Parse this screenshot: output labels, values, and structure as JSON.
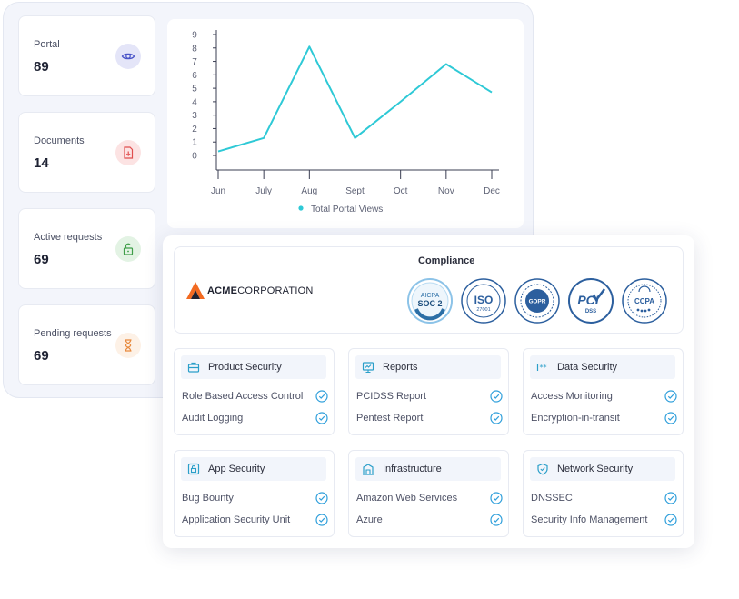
{
  "stats": [
    {
      "label": "Portal",
      "value": "89",
      "icon": "eye-icon",
      "bg": "#e4e5f8",
      "color": "#4a54c8"
    },
    {
      "label": "Documents",
      "value": "14",
      "icon": "document-download-icon",
      "bg": "#fce3e3",
      "color": "#e04e4e"
    },
    {
      "label": "Active requests",
      "value": "69",
      "icon": "unlock-icon",
      "bg": "#e3f3e4",
      "color": "#3f9e49"
    },
    {
      "label": "Pending requests",
      "value": "69",
      "icon": "hourglass-icon",
      "bg": "#fdf1e6",
      "color": "#e88a3e"
    }
  ],
  "chart_data": {
    "type": "line",
    "categories": [
      "Jun",
      "July",
      "Aug",
      "Sept",
      "Oct",
      "Nov",
      "Dec"
    ],
    "series": [
      {
        "name": "Total Portal Views",
        "values": [
          0.3,
          1.3,
          8.1,
          1.3,
          4.0,
          6.8,
          4.7
        ],
        "color": "#2ec9d6"
      }
    ],
    "y_ticks": [
      "0",
      "1",
      "2",
      "3",
      "4",
      "5",
      "6",
      "7",
      "8",
      "9"
    ],
    "ylim": [
      0,
      9
    ],
    "legend_position": "bottom",
    "grid": false
  },
  "compliance": {
    "title": "Compliance",
    "logo": {
      "bold": "ACME",
      "rest": "CORPORATION"
    },
    "badges": [
      {
        "top": "AICPA",
        "main": "SOC 2",
        "sub": "",
        "icon": "soc2-badge-icon"
      },
      {
        "top": "",
        "main": "ISO",
        "sub": "27001",
        "icon": "iso-27001-badge-icon"
      },
      {
        "top": "",
        "main": "GDPR",
        "sub": "",
        "icon": "gdpr-badge-icon"
      },
      {
        "top": "",
        "main": "PCI",
        "sub": "DSS",
        "icon": "pci-dss-badge-icon"
      },
      {
        "top": "",
        "main": "CCPA",
        "sub": "",
        "icon": "ccpa-badge-icon"
      }
    ]
  },
  "categories": [
    {
      "title": "Product Security",
      "icon": "briefcase-icon",
      "items": [
        "Role Based Access Control",
        "Audit Logging"
      ]
    },
    {
      "title": "Reports",
      "icon": "presentation-icon",
      "items": [
        "PCIDSS Report",
        "Pentest Report"
      ]
    },
    {
      "title": "Data Security",
      "icon": "password-field-icon",
      "items": [
        "Access Monitoring",
        "Encryption-in-transit"
      ]
    },
    {
      "title": "App Security",
      "icon": "lock-app-icon",
      "items": [
        "Bug Bounty",
        "Application Security Unit"
      ]
    },
    {
      "title": "Infrastructure",
      "icon": "building-icon",
      "items": [
        "Amazon Web Services",
        "Azure"
      ]
    },
    {
      "title": "Network Security",
      "icon": "shield-check-icon",
      "items": [
        "DNSSEC",
        "Security Info Management"
      ]
    }
  ],
  "colors": {
    "accent": "#2f9fdb",
    "icon": "#2b9fc9",
    "line": "#2ec9d6"
  }
}
